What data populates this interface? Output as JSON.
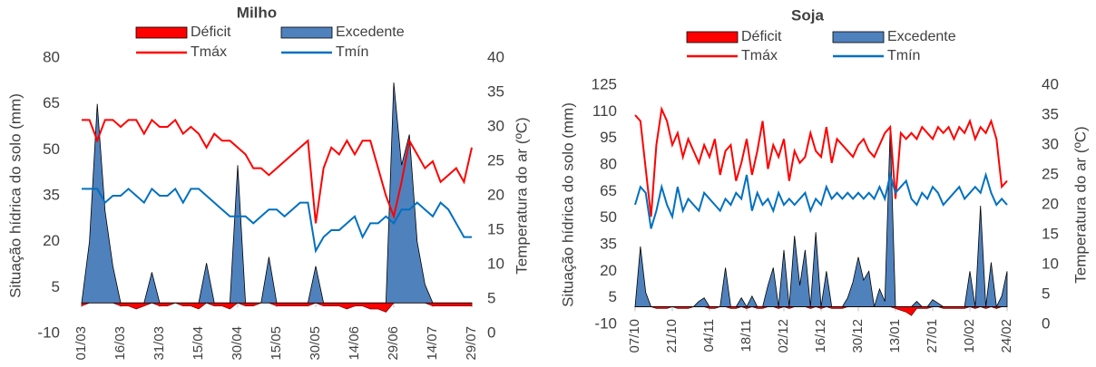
{
  "chart_data": [
    {
      "type": "combo",
      "title": "Milho",
      "y_label": "Situação hídrica do solo (mm)",
      "y2_label": "Temperatura do ar (ºC)",
      "categories": [
        "01/03",
        null,
        null,
        null,
        null,
        "16/03",
        null,
        null,
        null,
        null,
        "31/03",
        null,
        null,
        null,
        null,
        "15/04",
        null,
        null,
        null,
        null,
        "30/04",
        null,
        null,
        null,
        null,
        "15/05",
        null,
        null,
        null,
        null,
        "30/05",
        null,
        null,
        null,
        null,
        "14/06",
        null,
        null,
        null,
        null,
        "29/06",
        null,
        null,
        null,
        null,
        "14/07",
        null,
        null,
        null,
        null,
        "29/07"
      ],
      "ylim": [
        -10,
        80
      ],
      "yticks": [
        -10,
        5,
        20,
        35,
        50,
        65,
        80
      ],
      "y2lim": [
        0,
        40
      ],
      "y2ticks": [
        0,
        5,
        10,
        15,
        20,
        25,
        30,
        35,
        40
      ],
      "series": [
        {
          "name": "Déficit",
          "type": "area",
          "color": "#ff0000",
          "values": [
            -1,
            0,
            0,
            0,
            0,
            -1,
            -1,
            -2,
            -1,
            0,
            -1,
            -1,
            0,
            -1,
            -1,
            -2,
            0,
            -1,
            -1,
            -2,
            0,
            -1,
            -1,
            0,
            0,
            -1,
            -1,
            -1,
            -1,
            -1,
            0,
            -1,
            -1,
            -1,
            -2,
            -1,
            -1,
            -2,
            -2,
            -3,
            0,
            0,
            0,
            0,
            0,
            -1,
            -1,
            -1,
            -1,
            -1,
            -1
          ]
        },
        {
          "name": "Excedente",
          "type": "area",
          "color": "#4f81bd",
          "values": [
            0,
            20,
            65,
            30,
            12,
            0,
            0,
            0,
            0,
            10,
            0,
            0,
            0,
            0,
            0,
            0,
            13,
            0,
            0,
            0,
            45,
            0,
            0,
            0,
            15,
            0,
            0,
            0,
            0,
            0,
            12,
            0,
            0,
            0,
            0,
            0,
            0,
            0,
            0,
            0,
            72,
            45,
            55,
            20,
            6,
            0,
            0,
            0,
            0,
            0,
            0
          ]
        },
        {
          "name": "Tmáx",
          "type": "line",
          "axis": "y2",
          "color": "#ff0000",
          "values": [
            31,
            31,
            28,
            31,
            31,
            30,
            31,
            31,
            29,
            31,
            30,
            30,
            31,
            29,
            30,
            29,
            27,
            29,
            28,
            28,
            27,
            26,
            24,
            24,
            23,
            24,
            25,
            26,
            27,
            28,
            16,
            24,
            27,
            26,
            28,
            26,
            28,
            28,
            24,
            20,
            17,
            22,
            28,
            26,
            24,
            25,
            22,
            23,
            24,
            22,
            27
          ]
        },
        {
          "name": "Tmín",
          "type": "line",
          "axis": "y2",
          "color": "#0070c0",
          "values": [
            21,
            21,
            21,
            19,
            20,
            20,
            21,
            20,
            19,
            21,
            20,
            20,
            21,
            19,
            21,
            21,
            20,
            19,
            18,
            17,
            17,
            17,
            16,
            17,
            18,
            18,
            17,
            18,
            19,
            19,
            12,
            14,
            15,
            15,
            16,
            17,
            14,
            16,
            16,
            17,
            16,
            18,
            18,
            19,
            18,
            17,
            19,
            18,
            16,
            14,
            14
          ]
        }
      ]
    },
    {
      "type": "combo",
      "title": "Soja",
      "y_label": "Situação hídrica do solo (mm)",
      "y2_label": "Temperatura do ar (ºC)",
      "categories": [
        "07/10",
        null,
        null,
        null,
        null,
        null,
        null,
        "21/10",
        null,
        null,
        null,
        null,
        null,
        null,
        "04/11",
        null,
        null,
        null,
        null,
        null,
        null,
        "18/11",
        null,
        null,
        null,
        null,
        null,
        null,
        "02/12",
        null,
        null,
        null,
        null,
        null,
        null,
        "16/12",
        null,
        null,
        null,
        null,
        null,
        null,
        "30/12",
        null,
        null,
        null,
        null,
        null,
        null,
        "13/01",
        null,
        null,
        null,
        null,
        null,
        null,
        "27/01",
        null,
        null,
        null,
        null,
        null,
        null,
        "10/02",
        null,
        null,
        null,
        null,
        null,
        null,
        "24/02"
      ],
      "ylim": [
        -10,
        125
      ],
      "yticks": [
        -10,
        5,
        20,
        35,
        50,
        65,
        80,
        95,
        110,
        125
      ],
      "y2lim": [
        0,
        40
      ],
      "y2ticks": [
        0,
        5,
        10,
        15,
        20,
        25,
        30,
        35,
        40
      ],
      "series": [
        {
          "name": "Déficit",
          "type": "area",
          "color": "#ff0000",
          "values": [
            0,
            0,
            0,
            0,
            -1,
            -1,
            -1,
            0,
            -1,
            -1,
            -1,
            0,
            0,
            0,
            -1,
            -1,
            0,
            0,
            -1,
            -1,
            0,
            -1,
            0,
            -1,
            -1,
            0,
            0,
            -1,
            0,
            -1,
            0,
            0,
            0,
            -1,
            0,
            -1,
            0,
            -1,
            -1,
            -1,
            0,
            0,
            0,
            0,
            0,
            0,
            0,
            0,
            0,
            -1,
            -2,
            -3,
            -5,
            -1,
            -1,
            -1,
            0,
            0,
            -1,
            -1,
            -1,
            -1,
            -1,
            0,
            -1,
            0,
            -1,
            0,
            -1,
            0,
            0
          ]
        },
        {
          "name": "Excedente",
          "type": "area",
          "color": "#4f81bd",
          "values": [
            0,
            34,
            8,
            0,
            0,
            0,
            0,
            0,
            0,
            0,
            0,
            0,
            3,
            5,
            0,
            0,
            0,
            22,
            0,
            0,
            5,
            0,
            6,
            0,
            0,
            12,
            22,
            0,
            32,
            0,
            40,
            12,
            32,
            0,
            42,
            0,
            20,
            0,
            0,
            0,
            5,
            14,
            28,
            15,
            20,
            0,
            10,
            3,
            100,
            0,
            0,
            0,
            0,
            3,
            0,
            0,
            4,
            2,
            0,
            0,
            0,
            0,
            0,
            20,
            0,
            57,
            0,
            25,
            0,
            6,
            20
          ]
        },
        {
          "name": "Tmáx",
          "type": "line",
          "axis": "y2",
          "color": "#ff0000",
          "values": [
            35,
            34,
            26,
            18,
            30,
            36,
            34,
            30,
            32,
            28,
            31,
            29,
            27,
            30,
            28,
            31,
            25,
            29,
            30,
            24,
            27,
            31,
            25,
            29,
            34,
            26,
            30,
            28,
            31,
            24,
            29,
            27,
            28,
            32,
            29,
            28,
            33,
            27,
            31,
            30,
            29,
            28,
            30,
            31,
            29,
            28,
            30,
            32,
            33,
            21,
            32,
            31,
            32,
            31,
            33,
            32,
            31,
            33,
            32,
            33,
            31,
            33,
            32,
            34,
            31,
            33,
            32,
            34,
            31,
            23,
            24
          ]
        },
        {
          "name": "Tmín",
          "type": "line",
          "axis": "y2",
          "color": "#0070c0",
          "values": [
            20,
            23,
            22,
            16,
            19,
            23,
            20,
            18,
            23,
            19,
            21,
            20,
            19,
            22,
            21,
            20,
            19,
            21,
            20,
            22,
            21,
            25,
            19,
            22,
            20,
            21,
            19,
            22,
            20,
            21,
            20,
            21,
            22,
            19,
            21,
            20,
            23,
            21,
            22,
            21,
            22,
            21,
            22,
            21,
            22,
            21,
            23,
            21,
            25,
            22,
            23,
            24,
            21,
            20,
            22,
            21,
            23,
            22,
            20,
            21,
            22,
            23,
            21,
            22,
            23,
            22,
            25,
            22,
            20,
            21,
            20
          ]
        }
      ]
    }
  ]
}
